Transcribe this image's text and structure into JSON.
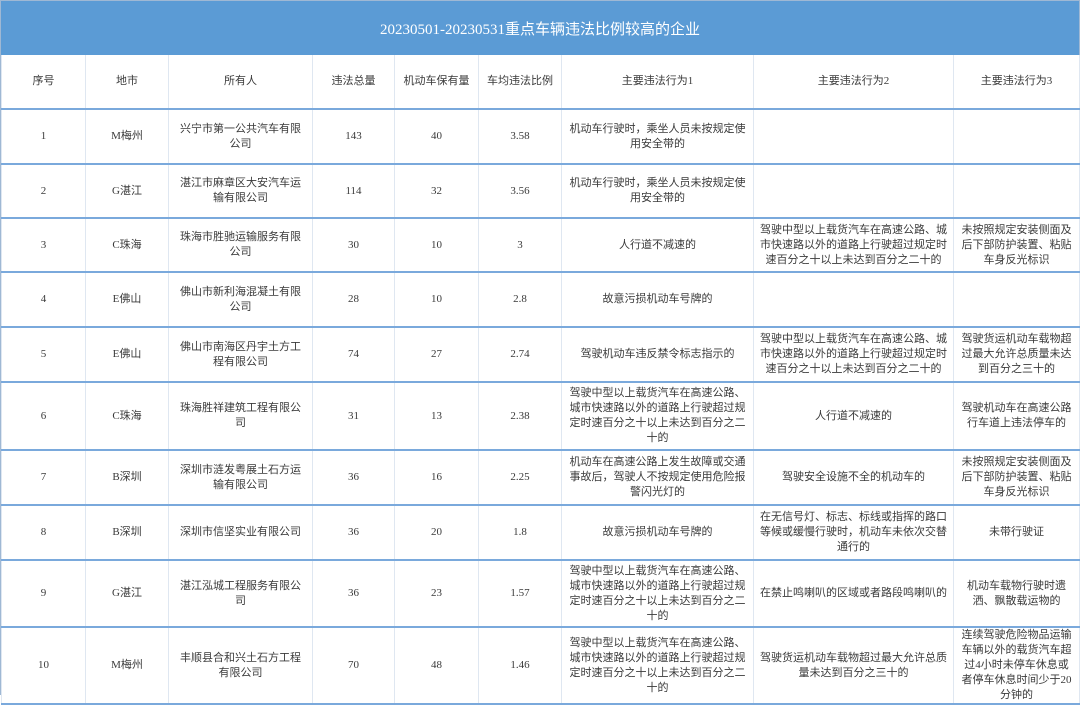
{
  "title": "20230501-20230531重点车辆违法比例较高的企业",
  "colors": {
    "header_bg": "#5b9bd5",
    "row_line": "#7aa9dc"
  },
  "columns": [
    "序号",
    "地市",
    "所有人",
    "违法总量",
    "机动车保有量",
    "车均违法比例",
    "主要违法行为1",
    "主要违法行为2",
    "主要违法行为3"
  ],
  "rows": [
    [
      "1",
      "M梅州",
      "兴宁市第一公共汽车有限公司",
      "143",
      "40",
      "3.58",
      "机动车行驶时，乘坐人员未按规定使用安全带的",
      "",
      ""
    ],
    [
      "2",
      "G湛江",
      "湛江市麻章区大安汽车运输有限公司",
      "114",
      "32",
      "3.56",
      "机动车行驶时，乘坐人员未按规定使用安全带的",
      "",
      ""
    ],
    [
      "3",
      "C珠海",
      "珠海市胜驰运输服务有限公司",
      "30",
      "10",
      "3",
      "人行道不减速的",
      "驾驶中型以上载货汽车在高速公路、城市快速路以外的道路上行驶超过规定时速百分之十以上未达到百分之二十的",
      "未按照规定安装侧面及后下部防护装置、粘贴车身反光标识"
    ],
    [
      "4",
      "E佛山",
      "佛山市新利海混凝土有限公司",
      "28",
      "10",
      "2.8",
      "故意污损机动车号牌的",
      "",
      ""
    ],
    [
      "5",
      "E佛山",
      "佛山市南海区丹宇土方工程有限公司",
      "74",
      "27",
      "2.74",
      "驾驶机动车违反禁令标志指示的",
      "驾驶中型以上载货汽车在高速公路、城市快速路以外的道路上行驶超过规定时速百分之十以上未达到百分之二十的",
      "驾驶货运机动车载物超过最大允许总质量未达到百分之三十的"
    ],
    [
      "6",
      "C珠海",
      "珠海胜祥建筑工程有限公司",
      "31",
      "13",
      "2.38",
      "驾驶中型以上载货汽车在高速公路、城市快速路以外的道路上行驶超过规定时速百分之十以上未达到百分之二十的",
      "人行道不减速的",
      "驾驶机动车在高速公路行车道上违法停车的"
    ],
    [
      "7",
      "B深圳",
      "深圳市涟发粤展土石方运输有限公司",
      "36",
      "16",
      "2.25",
      "机动车在高速公路上发生故障或交通事故后，驾驶人不按规定使用危险报警闪光灯的",
      "驾驶安全设施不全的机动车的",
      "未按照规定安装侧面及后下部防护装置、粘贴车身反光标识"
    ],
    [
      "8",
      "B深圳",
      "深圳市信坚实业有限公司",
      "36",
      "20",
      "1.8",
      "故意污损机动车号牌的",
      "在无信号灯、标志、标线或指挥的路口等候或缓慢行驶时，机动车未依次交替通行的",
      "未带行驶证"
    ],
    [
      "9",
      "G湛江",
      "湛江泓城工程服务有限公司",
      "36",
      "23",
      "1.57",
      "驾驶中型以上载货汽车在高速公路、城市快速路以外的道路上行驶超过规定时速百分之十以上未达到百分之二十的",
      "在禁止鸣喇叭的区域或者路段鸣喇叭的",
      "机动车载物行驶时遗洒、飘散载运物的"
    ],
    [
      "10",
      "M梅州",
      "丰顺县合和兴土石方工程有限公司",
      "70",
      "48",
      "1.46",
      "驾驶中型以上载货汽车在高速公路、城市快速路以外的道路上行驶超过规定时速百分之十以上未达到百分之二十的",
      "驾驶货运机动车载物超过最大允许总质量未达到百分之三十的",
      "连续驾驶危险物品运输车辆以外的载货汽车超过4小时未停车休息或者停车休息时间少于20分钟的"
    ]
  ]
}
